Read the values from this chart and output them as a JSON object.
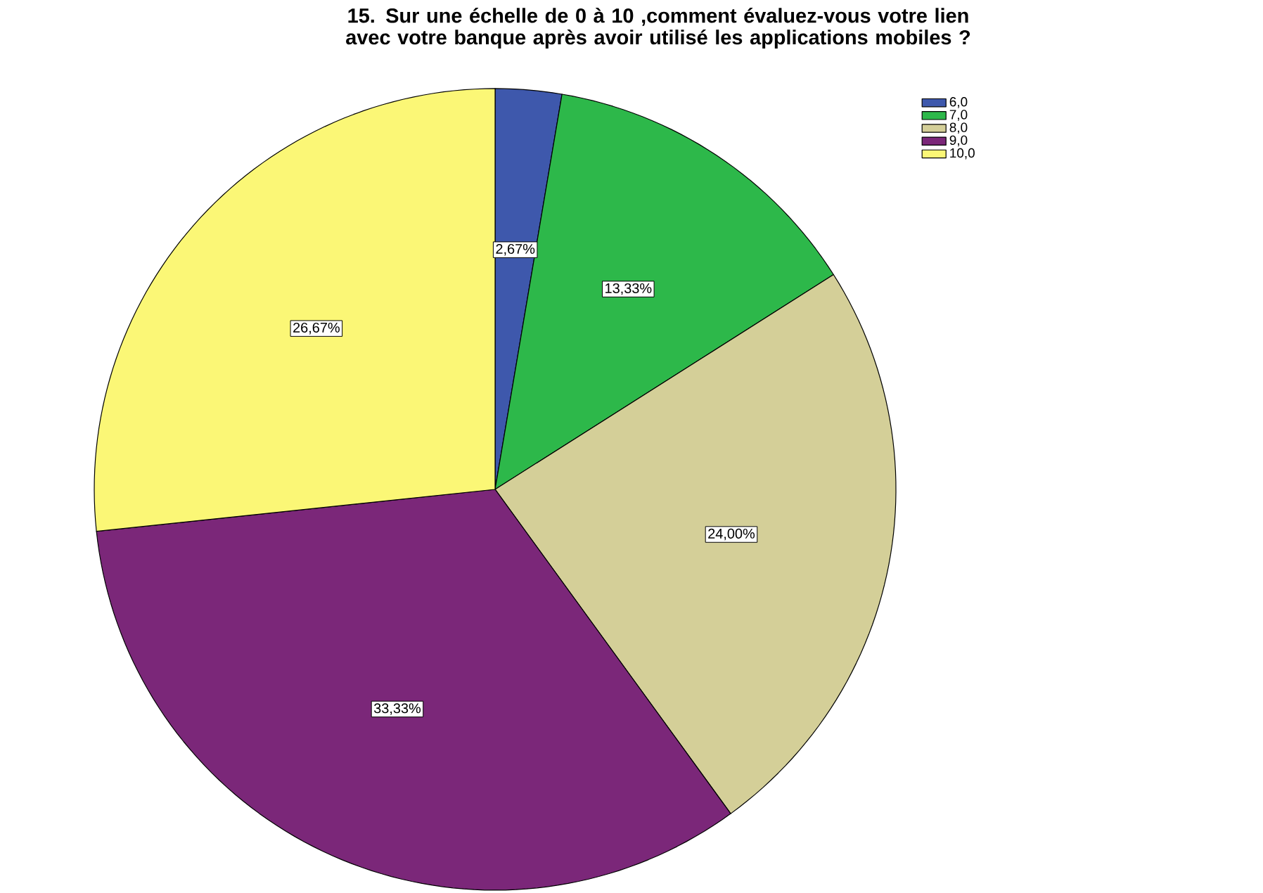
{
  "chart_data": {
    "type": "pie",
    "title": "15. Sur une échelle de 0 à 10 ,comment évaluez-vous votre lien avec votre banque après avoir utilisé les applications mobiles ?",
    "categories": [
      "6,0",
      "7,0",
      "8,0",
      "9,0",
      "10,0"
    ],
    "values": [
      2.67,
      13.33,
      24.0,
      33.33,
      26.67
    ],
    "colors": [
      "#3e58ac",
      "#2db84a",
      "#d4cf98",
      "#7b2779",
      "#fbf776"
    ],
    "value_labels": [
      "2,67%",
      "13,33%",
      "24,00%",
      "33,33%",
      "26,67%"
    ],
    "legend": "top right"
  }
}
